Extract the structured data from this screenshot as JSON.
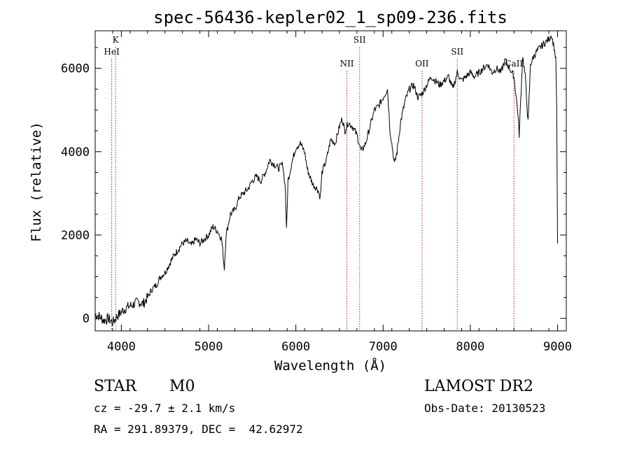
{
  "chart_data": {
    "type": "line",
    "title": "spec-56436-kepler02_1_sp09-236.fits",
    "xlabel": "Wavelength (Å)",
    "ylabel": "Flux (relative)",
    "xlim": [
      3700,
      9100
    ],
    "ylim": [
      -300,
      6900
    ],
    "xticks": [
      4000,
      5000,
      6000,
      7000,
      8000,
      9000
    ],
    "yticks": [
      0,
      2000,
      4000,
      6000
    ],
    "grid": false,
    "series": [
      {
        "color": "#000000",
        "x": [
          3700,
          3750,
          3800,
          3850,
          3900,
          3950,
          4000,
          4050,
          4100,
          4150,
          4200,
          4250,
          4300,
          4350,
          4400,
          4450,
          4500,
          4550,
          4600,
          4650,
          4700,
          4750,
          4800,
          4850,
          4900,
          4950,
          5000,
          5050,
          5100,
          5150,
          5180,
          5200,
          5250,
          5300,
          5350,
          5400,
          5450,
          5500,
          5550,
          5600,
          5650,
          5700,
          5750,
          5800,
          5850,
          5880,
          5893,
          5910,
          5950,
          6000,
          6050,
          6100,
          6130,
          6160,
          6200,
          6250,
          6280,
          6300,
          6350,
          6400,
          6450,
          6500,
          6530,
          6563,
          6600,
          6650,
          6700,
          6750,
          6800,
          6850,
          6900,
          6950,
          7000,
          7050,
          7080,
          7100,
          7130,
          7160,
          7200,
          7250,
          7300,
          7350,
          7400,
          7450,
          7500,
          7550,
          7600,
          7650,
          7700,
          7750,
          7800,
          7850,
          7900,
          7950,
          8000,
          8050,
          8100,
          8150,
          8200,
          8250,
          8300,
          8350,
          8400,
          8450,
          8500,
          8542,
          8560,
          8600,
          8630,
          8662,
          8690,
          8730,
          8760,
          8800,
          8850,
          8900,
          8930,
          8960,
          8980,
          8990,
          9000
        ],
        "y": [
          100,
          50,
          -50,
          0,
          -100,
          50,
          150,
          250,
          300,
          350,
          400,
          350,
          500,
          700,
          800,
          1000,
          1100,
          1300,
          1500,
          1650,
          1800,
          1850,
          1750,
          1900,
          1800,
          1900,
          2000,
          2200,
          2100,
          1900,
          1200,
          2000,
          2500,
          2600,
          2900,
          3000,
          3100,
          3300,
          3400,
          3300,
          3500,
          3800,
          3700,
          3600,
          3700,
          3100,
          2100,
          3300,
          3700,
          4100,
          4200,
          4000,
          3600,
          3400,
          3200,
          3100,
          2900,
          3500,
          3800,
          4300,
          4200,
          4600,
          4800,
          4500,
          4700,
          4600,
          4400,
          4000,
          4200,
          4600,
          5000,
          5100,
          5300,
          5500,
          4500,
          4200,
          3700,
          4000,
          4700,
          5200,
          5500,
          5600,
          5300,
          5400,
          5600,
          5800,
          5700,
          5600,
          5700,
          5800,
          5500,
          5900,
          5700,
          5800,
          5900,
          5800,
          5900,
          6000,
          6100,
          5900,
          6000,
          5900,
          6200,
          6000,
          5800,
          5000,
          4400,
          6300,
          5800,
          4700,
          6100,
          6300,
          6400,
          6500,
          6600,
          6700,
          6800,
          6500,
          6200,
          5000,
          1800
        ]
      }
    ],
    "line_markers": [
      {
        "label": "K",
        "wavelength": 3934,
        "row": "top"
      },
      {
        "label": "HeI",
        "wavelength": 3889,
        "row": "mid"
      },
      {
        "label": "NII",
        "wavelength": 6585,
        "row": "low"
      },
      {
        "label": "SII",
        "wavelength": 6731,
        "row": "top"
      },
      {
        "label": "OII",
        "wavelength": 7446,
        "row": "low"
      },
      {
        "label": "SII",
        "wavelength": 7850,
        "row": "mid"
      },
      {
        "label": "CaII",
        "wavelength": 8500,
        "row": "low"
      }
    ]
  },
  "info": {
    "object_class": "STAR",
    "subclass": "M0",
    "survey": "LAMOST DR2",
    "redshift": "cz = -29.7 ± 2.1 km/s",
    "obs_date": "Obs-Date: 20130523",
    "coords": "RA = 291.89379, DEC =  42.62972"
  }
}
